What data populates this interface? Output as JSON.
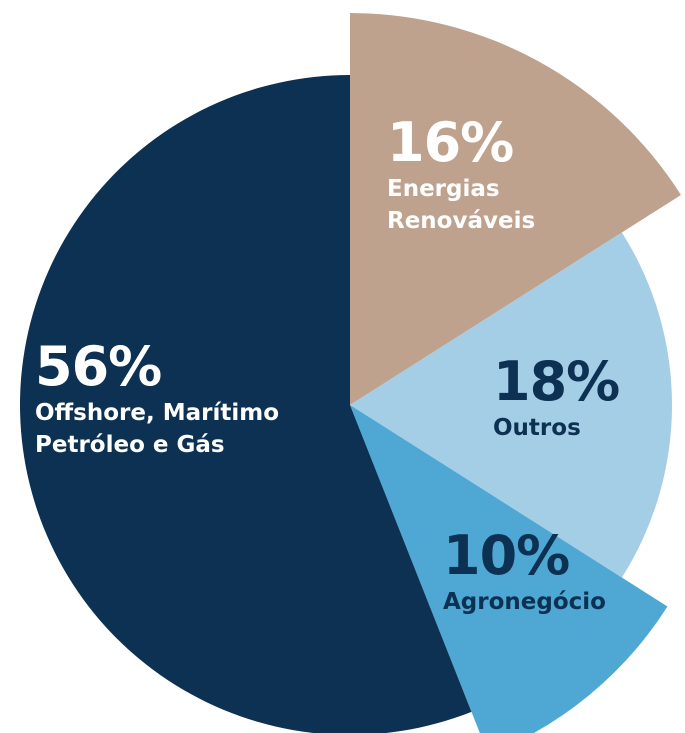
{
  "chart_data": {
    "type": "pie",
    "categories": [
      "Energias Renováveis",
      "Outros",
      "Agronegócio",
      "Offshore, Marítimo Petróleo e Gás"
    ],
    "values": [
      16,
      18,
      10,
      56
    ],
    "value_labels": [
      "16%",
      "18%",
      "10%",
      "56%"
    ],
    "colors": [
      "#bfa28e",
      "#a4cde6",
      "#4ea8d3",
      "#0c3152"
    ]
  }
}
